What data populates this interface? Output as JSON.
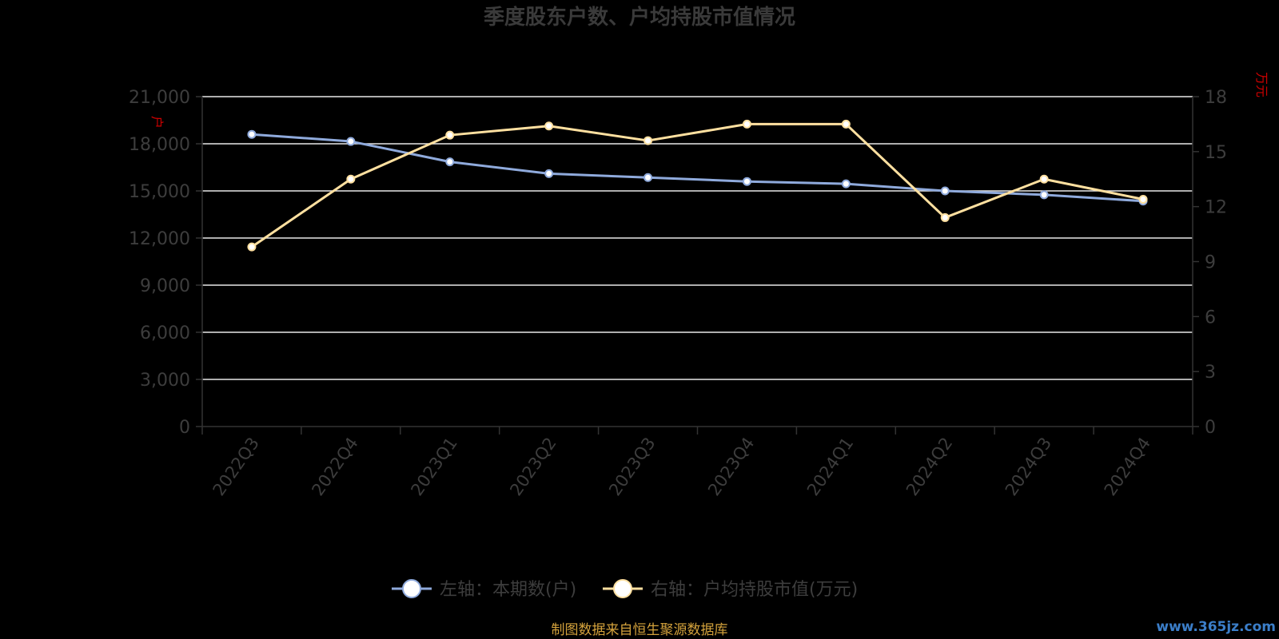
{
  "chart_data": {
    "type": "line",
    "title": "季度股东户数、户均持股市值情况",
    "categories": [
      "2022Q3",
      "2022Q4",
      "2023Q1",
      "2023Q2",
      "2023Q3",
      "2023Q4",
      "2024Q1",
      "2024Q2",
      "2024Q3",
      "2024Q4"
    ],
    "series": [
      {
        "name": "左轴：本期数(户)",
        "axis": "left",
        "color": "#8FAADC",
        "values": [
          18600,
          18150,
          16850,
          16100,
          15850,
          15600,
          15450,
          15000,
          14750,
          14350
        ]
      },
      {
        "name": "右轴：户均持股市值(万元)",
        "axis": "right",
        "color": "#FFE0A0",
        "values": [
          9.8,
          13.5,
          15.9,
          16.4,
          15.6,
          16.5,
          16.5,
          11.4,
          13.5,
          12.4
        ]
      }
    ],
    "left_axis": {
      "unit": "户",
      "ylim": [
        0,
        21000
      ],
      "ticks": [
        "0",
        "3,000",
        "6,000",
        "9,000",
        "12,000",
        "15,000",
        "18,000",
        "21,000"
      ]
    },
    "right_axis": {
      "unit": "万元",
      "ylim": [
        0,
        18
      ],
      "ticks": [
        "0",
        "3",
        "6",
        "9",
        "12",
        "15",
        "18"
      ]
    },
    "grid": true,
    "legend_position": "bottom-center",
    "source": "制图数据来自恒生聚源数据库",
    "watermark": "www.365jz.com"
  },
  "colors": {
    "background": "#000000",
    "title": "#3a3a3a",
    "axis_text": "#3d3d3d",
    "grid": "#e8e8e8",
    "axis_line": "#333333",
    "unit_text": "#cc0000",
    "source_text": "#d4a23c",
    "watermark": "#3b7ec9"
  }
}
